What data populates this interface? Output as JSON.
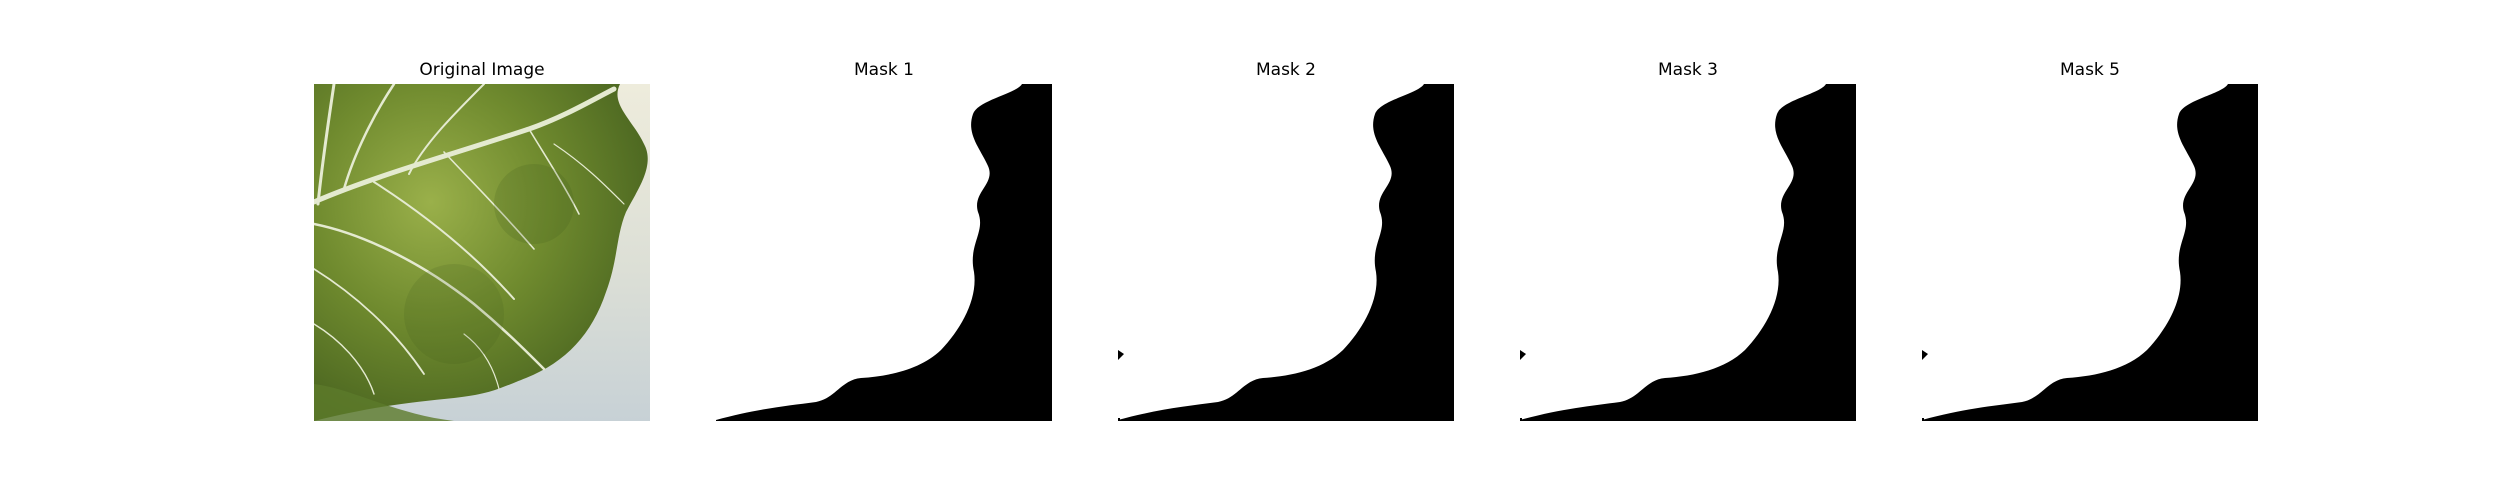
{
  "panels": [
    {
      "title": "Original Image",
      "kind": "photo"
    },
    {
      "title": "Mask 1",
      "kind": "mask"
    },
    {
      "title": "Mask 2",
      "kind": "mask"
    },
    {
      "title": "Mask 3",
      "kind": "mask"
    },
    {
      "title": "Mask 5",
      "kind": "mask"
    }
  ],
  "colors": {
    "leaf_dark": "#3f5a1c",
    "leaf_mid": "#6f8a2e",
    "leaf_light": "#9ab04a",
    "vein": "#e8ecd2",
    "backdrop_cream": "#eceadb",
    "backdrop_blue": "#c9d2d6",
    "mask_white": "#ffffff",
    "mask_black": "#000000"
  }
}
